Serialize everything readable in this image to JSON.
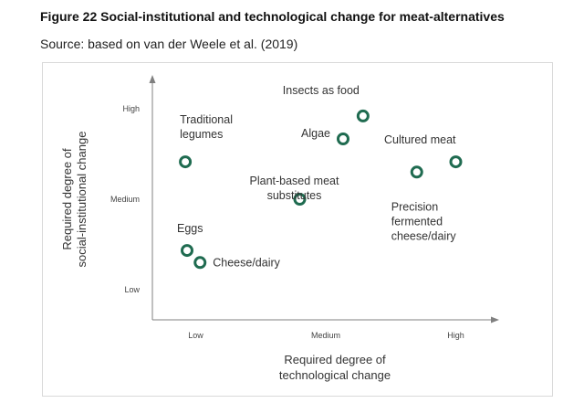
{
  "header": {
    "title": "Figure 22 Social-institutional and technological change for meat-alternatives",
    "source": "Source: based on van der Weele et al. (2019)"
  },
  "chart_data": {
    "type": "scatter",
    "xlabel_lines": [
      "Required degree of",
      "technological change"
    ],
    "ylabel_lines": [
      "Required degree of",
      "social-institutional change"
    ],
    "x_ticks": [
      "Low",
      "Medium",
      "High"
    ],
    "y_ticks": [
      "Low",
      "Medium",
      "High"
    ],
    "xlim": [
      0,
      4
    ],
    "ylim": [
      0,
      4
    ],
    "grid": false,
    "legend": "none",
    "marker_color": "#1f6b50",
    "points": [
      {
        "label_lines": [
          "Insects as food"
        ],
        "x": 2.43,
        "y": 3.38
      },
      {
        "label_lines": [
          "Algae"
        ],
        "x": 2.2,
        "y": 3.0
      },
      {
        "label_lines": [
          "Traditional",
          "legumes"
        ],
        "x": 0.38,
        "y": 2.62
      },
      {
        "label_lines": [
          "Cultured  meat"
        ],
        "x": 3.5,
        "y": 2.62
      },
      {
        "label_lines": [
          "Precision",
          "fermented",
          "cheese/dairy"
        ],
        "x": 3.05,
        "y": 2.45
      },
      {
        "label_lines": [
          "Plant-based meat",
          "substitutes"
        ],
        "x": 1.7,
        "y": 2.0
      },
      {
        "label_lines": [
          "Eggs"
        ],
        "x": 0.4,
        "y": 1.15
      },
      {
        "label_lines": [
          "Cheese/dairy"
        ],
        "x": 0.55,
        "y": 0.95
      }
    ]
  }
}
